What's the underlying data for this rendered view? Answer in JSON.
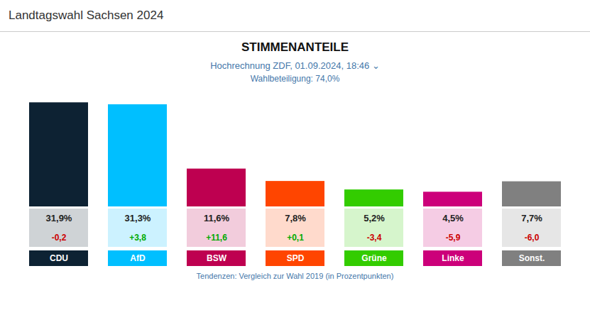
{
  "chart_data": {
    "type": "bar",
    "header": "Landtagswahl Sachsen 2024",
    "title": "STIMMENANTEILE",
    "subtitle": [
      "Hochrechnung ZDF, 01.09.2024, 18:46  ⌄",
      "Wahlbeteiligung: 74,0%"
    ],
    "footer": "Tendenzen: Vergleich zur Wahl 2019 (in Prozentpunkten)",
    "categories": [
      "CDU",
      "AfD",
      "BSW",
      "SPD",
      "Grüne",
      "Linke",
      "Sonst."
    ],
    "values": [
      31.9,
      31.3,
      11.6,
      7.8,
      5.2,
      4.5,
      7.7
    ],
    "value_labels": [
      "31,9%",
      "31,3%",
      "11,6%",
      "7,8%",
      "5,2%",
      "4,5%",
      "7,7%"
    ],
    "data_labels": true,
    "changes": [
      -0.2,
      3.8,
      11.6,
      0.1,
      -3.4,
      -5.9,
      -6.0
    ],
    "change_labels": [
      "-0,2",
      "+3,8",
      "+11,6",
      "+0,1",
      "-3,4",
      "-5,9",
      "-6,0"
    ],
    "change_colors": [
      "#cc0000",
      "#00aa00",
      "#00aa00",
      "#00aa00",
      "#cc0000",
      "#cc0000",
      "#cc0000"
    ],
    "colors": [
      "#0d2233",
      "#00bfff",
      "#be0050",
      "#ff4500",
      "#33cc00",
      "#cc007a",
      "#808080"
    ],
    "ylim": [
      0,
      35
    ],
    "tick_labels": "x",
    "grid": false
  }
}
